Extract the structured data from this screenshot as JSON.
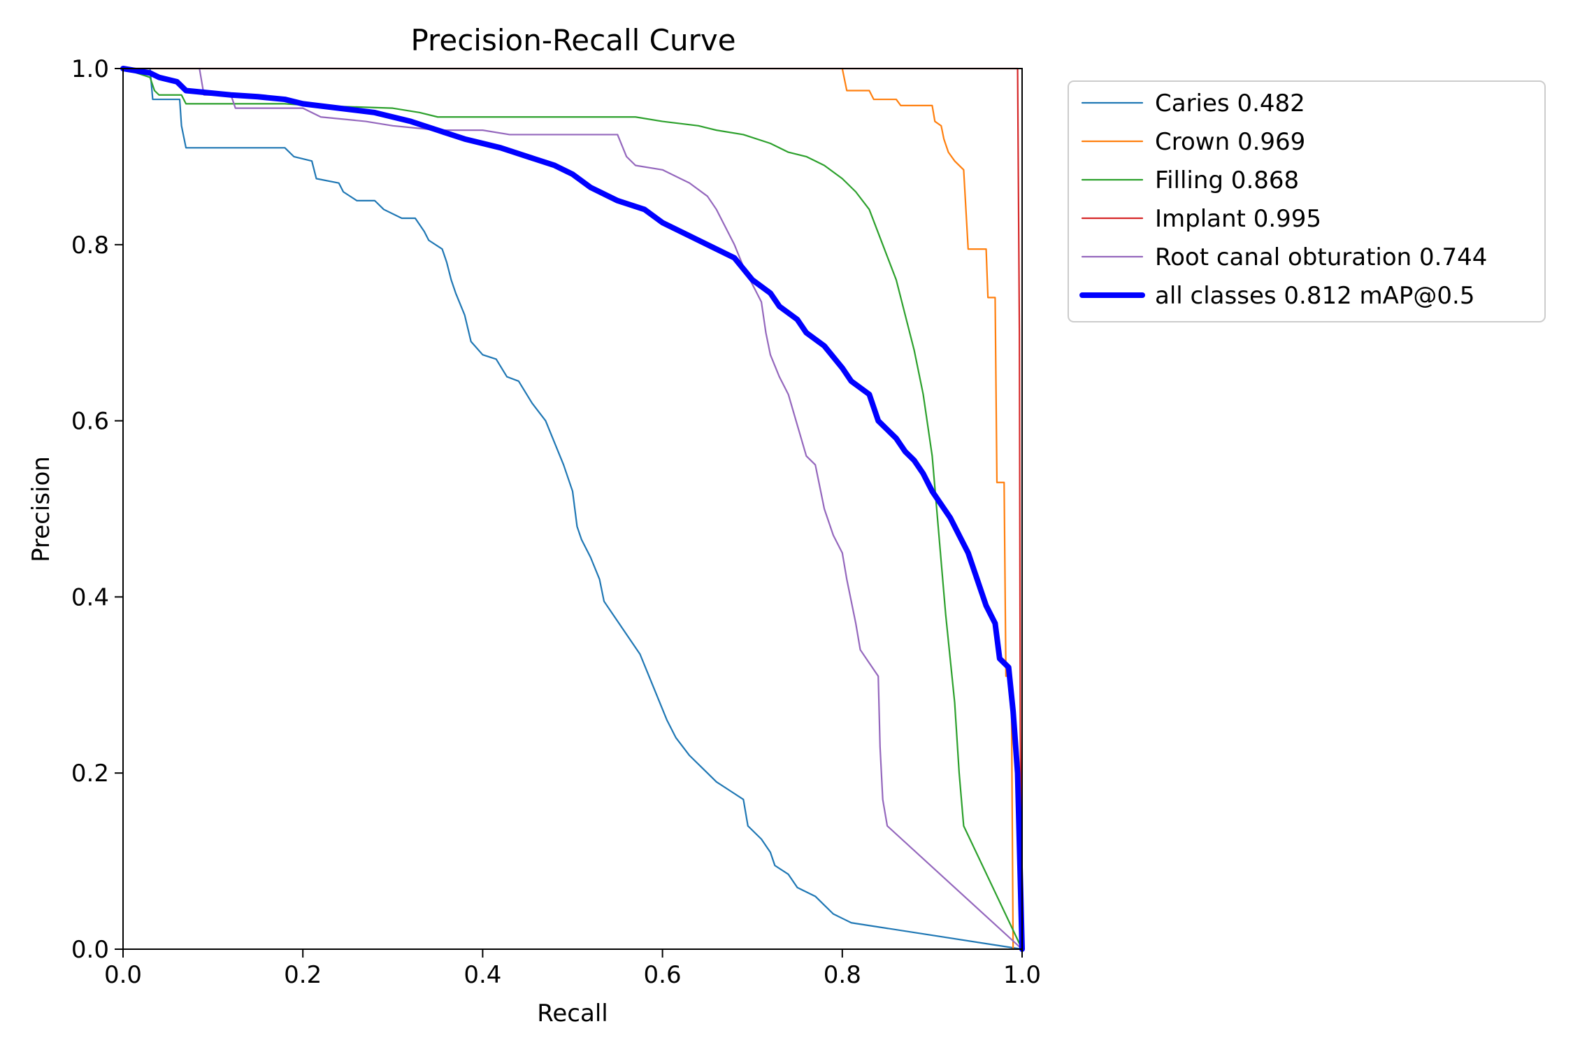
{
  "chart_data": {
    "type": "line",
    "title": "Precision-Recall Curve",
    "xlabel": "Recall",
    "ylabel": "Precision",
    "xlim": [
      0,
      1
    ],
    "ylim": [
      0,
      1
    ],
    "xticks": [
      "0.0",
      "0.2",
      "0.4",
      "0.6",
      "0.8",
      "1.0"
    ],
    "yticks": [
      "0.0",
      "0.2",
      "0.4",
      "0.6",
      "0.8",
      "1.0"
    ],
    "legend_position": "outside-right",
    "grid": false,
    "series": [
      {
        "name": "Caries",
        "score": "0.482",
        "color": "#1f77b4",
        "bold": false,
        "points": [
          [
            0.0,
            1.0
          ],
          [
            0.03,
            1.0
          ],
          [
            0.033,
            0.965
          ],
          [
            0.05,
            0.965
          ],
          [
            0.063,
            0.965
          ],
          [
            0.065,
            0.935
          ],
          [
            0.07,
            0.91
          ],
          [
            0.1,
            0.91
          ],
          [
            0.18,
            0.91
          ],
          [
            0.19,
            0.9
          ],
          [
            0.21,
            0.895
          ],
          [
            0.215,
            0.875
          ],
          [
            0.24,
            0.87
          ],
          [
            0.245,
            0.86
          ],
          [
            0.26,
            0.85
          ],
          [
            0.28,
            0.85
          ],
          [
            0.29,
            0.84
          ],
          [
            0.31,
            0.83
          ],
          [
            0.325,
            0.83
          ],
          [
            0.335,
            0.815
          ],
          [
            0.34,
            0.805
          ],
          [
            0.355,
            0.795
          ],
          [
            0.36,
            0.78
          ],
          [
            0.365,
            0.76
          ],
          [
            0.37,
            0.745
          ],
          [
            0.38,
            0.72
          ],
          [
            0.387,
            0.69
          ],
          [
            0.4,
            0.675
          ],
          [
            0.415,
            0.67
          ],
          [
            0.427,
            0.65
          ],
          [
            0.44,
            0.645
          ],
          [
            0.455,
            0.62
          ],
          [
            0.47,
            0.6
          ],
          [
            0.48,
            0.575
          ],
          [
            0.49,
            0.55
          ],
          [
            0.5,
            0.52
          ],
          [
            0.505,
            0.48
          ],
          [
            0.51,
            0.465
          ],
          [
            0.52,
            0.445
          ],
          [
            0.53,
            0.42
          ],
          [
            0.535,
            0.395
          ],
          [
            0.545,
            0.38
          ],
          [
            0.555,
            0.365
          ],
          [
            0.565,
            0.35
          ],
          [
            0.575,
            0.335
          ],
          [
            0.585,
            0.31
          ],
          [
            0.595,
            0.285
          ],
          [
            0.605,
            0.26
          ],
          [
            0.615,
            0.24
          ],
          [
            0.63,
            0.22
          ],
          [
            0.65,
            0.2
          ],
          [
            0.66,
            0.19
          ],
          [
            0.675,
            0.18
          ],
          [
            0.69,
            0.17
          ],
          [
            0.695,
            0.14
          ],
          [
            0.71,
            0.125
          ],
          [
            0.72,
            0.11
          ],
          [
            0.725,
            0.095
          ],
          [
            0.74,
            0.085
          ],
          [
            0.75,
            0.07
          ],
          [
            0.77,
            0.06
          ],
          [
            0.78,
            0.05
          ],
          [
            0.79,
            0.04
          ],
          [
            0.8,
            0.035
          ],
          [
            0.81,
            0.03
          ],
          [
            1.0,
            0.0
          ]
        ]
      },
      {
        "name": "Crown",
        "score": "0.969",
        "color": "#ff7f0e",
        "bold": false,
        "points": [
          [
            0.8,
            1.0
          ],
          [
            0.805,
            0.975
          ],
          [
            0.83,
            0.975
          ],
          [
            0.835,
            0.965
          ],
          [
            0.86,
            0.965
          ],
          [
            0.865,
            0.958
          ],
          [
            0.9,
            0.958
          ],
          [
            0.903,
            0.94
          ],
          [
            0.91,
            0.935
          ],
          [
            0.913,
            0.92
          ],
          [
            0.918,
            0.905
          ],
          [
            0.925,
            0.895
          ],
          [
            0.935,
            0.885
          ],
          [
            0.94,
            0.795
          ],
          [
            0.96,
            0.795
          ],
          [
            0.962,
            0.74
          ],
          [
            0.97,
            0.74
          ],
          [
            0.972,
            0.53
          ],
          [
            0.98,
            0.53
          ],
          [
            0.982,
            0.31
          ],
          [
            0.988,
            0.31
          ],
          [
            0.99,
            0.0
          ]
        ]
      },
      {
        "name": "Filling",
        "score": "0.868",
        "color": "#2ca02c",
        "bold": false,
        "points": [
          [
            0.0,
            1.0
          ],
          [
            0.03,
            0.99
          ],
          [
            0.035,
            0.975
          ],
          [
            0.04,
            0.97
          ],
          [
            0.065,
            0.97
          ],
          [
            0.07,
            0.96
          ],
          [
            0.1,
            0.96
          ],
          [
            0.18,
            0.96
          ],
          [
            0.21,
            0.958
          ],
          [
            0.3,
            0.955
          ],
          [
            0.33,
            0.95
          ],
          [
            0.35,
            0.945
          ],
          [
            0.4,
            0.945
          ],
          [
            0.5,
            0.945
          ],
          [
            0.55,
            0.945
          ],
          [
            0.57,
            0.945
          ],
          [
            0.6,
            0.94
          ],
          [
            0.64,
            0.935
          ],
          [
            0.66,
            0.93
          ],
          [
            0.69,
            0.925
          ],
          [
            0.72,
            0.915
          ],
          [
            0.74,
            0.905
          ],
          [
            0.76,
            0.9
          ],
          [
            0.78,
            0.89
          ],
          [
            0.8,
            0.875
          ],
          [
            0.815,
            0.86
          ],
          [
            0.83,
            0.84
          ],
          [
            0.845,
            0.8
          ],
          [
            0.86,
            0.76
          ],
          [
            0.87,
            0.72
          ],
          [
            0.88,
            0.68
          ],
          [
            0.89,
            0.63
          ],
          [
            0.9,
            0.56
          ],
          [
            0.905,
            0.5
          ],
          [
            0.91,
            0.44
          ],
          [
            0.915,
            0.38
          ],
          [
            0.92,
            0.33
          ],
          [
            0.925,
            0.28
          ],
          [
            0.93,
            0.2
          ],
          [
            0.935,
            0.14
          ],
          [
            1.0,
            0.0
          ]
        ]
      },
      {
        "name": "Implant",
        "score": "0.995",
        "color": "#d62728",
        "bold": false,
        "points": [
          [
            0.0,
            1.0
          ],
          [
            0.995,
            1.0
          ],
          [
            0.997,
            0.7
          ],
          [
            0.998,
            0.25
          ],
          [
            1.0,
            0.0
          ]
        ]
      },
      {
        "name": "Root canal obturation",
        "score": "0.744",
        "color": "#9467bd",
        "bold": false,
        "points": [
          [
            0.085,
            1.0
          ],
          [
            0.09,
            0.97
          ],
          [
            0.12,
            0.97
          ],
          [
            0.125,
            0.955
          ],
          [
            0.2,
            0.955
          ],
          [
            0.22,
            0.945
          ],
          [
            0.27,
            0.94
          ],
          [
            0.3,
            0.935
          ],
          [
            0.35,
            0.93
          ],
          [
            0.4,
            0.93
          ],
          [
            0.43,
            0.925
          ],
          [
            0.5,
            0.925
          ],
          [
            0.55,
            0.925
          ],
          [
            0.56,
            0.9
          ],
          [
            0.57,
            0.89
          ],
          [
            0.6,
            0.885
          ],
          [
            0.63,
            0.87
          ],
          [
            0.65,
            0.855
          ],
          [
            0.66,
            0.84
          ],
          [
            0.67,
            0.82
          ],
          [
            0.68,
            0.8
          ],
          [
            0.69,
            0.775
          ],
          [
            0.7,
            0.755
          ],
          [
            0.71,
            0.735
          ],
          [
            0.715,
            0.7
          ],
          [
            0.72,
            0.675
          ],
          [
            0.73,
            0.65
          ],
          [
            0.74,
            0.63
          ],
          [
            0.75,
            0.595
          ],
          [
            0.76,
            0.56
          ],
          [
            0.77,
            0.55
          ],
          [
            0.78,
            0.5
          ],
          [
            0.79,
            0.47
          ],
          [
            0.8,
            0.45
          ],
          [
            0.805,
            0.42
          ],
          [
            0.81,
            0.395
          ],
          [
            0.815,
            0.37
          ],
          [
            0.82,
            0.34
          ],
          [
            0.83,
            0.325
          ],
          [
            0.84,
            0.31
          ],
          [
            0.842,
            0.23
          ],
          [
            0.845,
            0.17
          ],
          [
            0.85,
            0.14
          ],
          [
            1.0,
            0.0
          ]
        ]
      },
      {
        "name": "all classes",
        "score": "0.812 mAP@0.5",
        "color": "#0000ff",
        "bold": true,
        "points": [
          [
            0.0,
            1.0
          ],
          [
            0.03,
            0.995
          ],
          [
            0.04,
            0.99
          ],
          [
            0.06,
            0.985
          ],
          [
            0.07,
            0.975
          ],
          [
            0.1,
            0.972
          ],
          [
            0.12,
            0.97
          ],
          [
            0.15,
            0.968
          ],
          [
            0.18,
            0.965
          ],
          [
            0.2,
            0.96
          ],
          [
            0.24,
            0.955
          ],
          [
            0.28,
            0.95
          ],
          [
            0.32,
            0.94
          ],
          [
            0.35,
            0.93
          ],
          [
            0.38,
            0.92
          ],
          [
            0.42,
            0.91
          ],
          [
            0.45,
            0.9
          ],
          [
            0.48,
            0.89
          ],
          [
            0.5,
            0.88
          ],
          [
            0.52,
            0.865
          ],
          [
            0.55,
            0.85
          ],
          [
            0.58,
            0.84
          ],
          [
            0.6,
            0.825
          ],
          [
            0.63,
            0.81
          ],
          [
            0.65,
            0.8
          ],
          [
            0.68,
            0.785
          ],
          [
            0.7,
            0.76
          ],
          [
            0.72,
            0.745
          ],
          [
            0.73,
            0.73
          ],
          [
            0.75,
            0.715
          ],
          [
            0.76,
            0.7
          ],
          [
            0.78,
            0.685
          ],
          [
            0.8,
            0.66
          ],
          [
            0.81,
            0.645
          ],
          [
            0.83,
            0.63
          ],
          [
            0.84,
            0.6
          ],
          [
            0.85,
            0.59
          ],
          [
            0.86,
            0.58
          ],
          [
            0.87,
            0.565
          ],
          [
            0.88,
            0.555
          ],
          [
            0.89,
            0.54
          ],
          [
            0.9,
            0.52
          ],
          [
            0.91,
            0.505
          ],
          [
            0.92,
            0.49
          ],
          [
            0.93,
            0.47
          ],
          [
            0.94,
            0.45
          ],
          [
            0.95,
            0.42
          ],
          [
            0.96,
            0.39
          ],
          [
            0.97,
            0.37
          ],
          [
            0.975,
            0.33
          ],
          [
            0.985,
            0.32
          ],
          [
            0.99,
            0.27
          ],
          [
            0.995,
            0.2
          ],
          [
            1.0,
            0.0
          ]
        ]
      }
    ]
  }
}
